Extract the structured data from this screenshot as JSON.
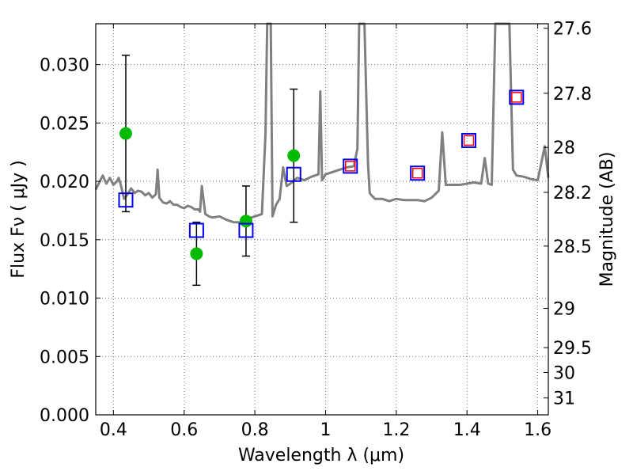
{
  "chart_data": {
    "type": "scatter",
    "title": "",
    "xlabel": "Wavelength  λ (μm)",
    "ylabel": "Flux  Fν  ( μJy )",
    "ylabel_right": "Magnitude (AB)",
    "xlim": [
      0.35,
      1.63
    ],
    "ylim": [
      0.0,
      0.0335
    ],
    "grid": true,
    "x_ticks": [
      0.4,
      0.6,
      0.8,
      1.0,
      1.2,
      1.4,
      1.6
    ],
    "x_tick_labels": [
      "0.4",
      "0.6",
      "0.8",
      "1",
      "1.2",
      "1.4",
      "1.6"
    ],
    "y_ticks": [
      0.0,
      0.005,
      0.01,
      0.015,
      0.02,
      0.025,
      0.03
    ],
    "y_tick_labels": [
      "0.000",
      "0.005",
      "0.010",
      "0.015",
      "0.020",
      "0.025",
      "0.030"
    ],
    "right_ticks": [
      {
        "label": "27.6",
        "mag": 27.6
      },
      {
        "label": "27.8",
        "mag": 27.8
      },
      {
        "label": "28",
        "mag": 28.0
      },
      {
        "label": "28.2",
        "mag": 28.2
      },
      {
        "label": "28.5",
        "mag": 28.5
      },
      {
        "label": "29",
        "mag": 29.0
      },
      {
        "label": "29.5",
        "mag": 29.5
      },
      {
        "label": "30",
        "mag": 30.0
      },
      {
        "label": "31",
        "mag": 31.0
      }
    ],
    "series": [
      {
        "kind": "model_spectrum",
        "color": "#808080",
        "x": [
          0.35,
          0.37,
          0.38,
          0.39,
          0.4,
          0.41,
          0.415,
          0.42,
          0.43,
          0.44,
          0.45,
          0.46,
          0.47,
          0.48,
          0.49,
          0.5,
          0.51,
          0.52,
          0.525,
          0.53,
          0.54,
          0.55,
          0.56,
          0.57,
          0.58,
          0.59,
          0.6,
          0.61,
          0.62,
          0.63,
          0.64,
          0.645,
          0.65,
          0.66,
          0.67,
          0.68,
          0.7,
          0.72,
          0.74,
          0.76,
          0.78,
          0.8,
          0.82,
          0.83,
          0.835,
          0.84,
          0.845,
          0.85,
          0.86,
          0.87,
          0.88,
          0.89,
          0.9,
          0.92,
          0.94,
          0.96,
          0.98,
          0.985,
          0.99,
          1.0,
          1.02,
          1.04,
          1.06,
          1.08,
          1.09,
          1.095,
          1.1,
          1.11,
          1.12,
          1.125,
          1.13,
          1.14,
          1.16,
          1.18,
          1.2,
          1.22,
          1.24,
          1.26,
          1.28,
          1.3,
          1.32,
          1.33,
          1.34,
          1.36,
          1.38,
          1.4,
          1.42,
          1.44,
          1.45,
          1.46,
          1.47,
          1.48,
          1.5,
          1.51,
          1.52,
          1.53,
          1.54,
          1.56,
          1.58,
          1.6,
          1.62,
          1.63
        ],
        "y": [
          0.0193,
          0.0205,
          0.0198,
          0.0203,
          0.0197,
          0.02,
          0.0203,
          0.0198,
          0.0185,
          0.0189,
          0.0194,
          0.019,
          0.0192,
          0.0191,
          0.0188,
          0.019,
          0.0186,
          0.0189,
          0.021,
          0.0186,
          0.0182,
          0.0181,
          0.0183,
          0.018,
          0.018,
          0.0178,
          0.0177,
          0.0179,
          0.0178,
          0.0176,
          0.0176,
          0.0174,
          0.0196,
          0.0172,
          0.017,
          0.0169,
          0.017,
          0.0167,
          0.0165,
          0.0165,
          0.0168,
          0.017,
          0.0172,
          0.024,
          0.0335,
          0.0335,
          0.0335,
          0.017,
          0.018,
          0.0185,
          0.0212,
          0.0196,
          0.0198,
          0.0203,
          0.0201,
          0.0204,
          0.0206,
          0.0277,
          0.0201,
          0.0206,
          0.0208,
          0.021,
          0.0212,
          0.0213,
          0.0228,
          0.0335,
          0.0335,
          0.0335,
          0.0215,
          0.019,
          0.0188,
          0.0185,
          0.0185,
          0.0183,
          0.0185,
          0.0184,
          0.0184,
          0.0184,
          0.0183,
          0.0186,
          0.0192,
          0.0242,
          0.0197,
          0.0197,
          0.0197,
          0.0198,
          0.0199,
          0.0198,
          0.022,
          0.0198,
          0.0197,
          0.0335,
          0.0335,
          0.0335,
          0.0335,
          0.021,
          0.0205,
          0.0204,
          0.0202,
          0.0201,
          0.023,
          0.0203
        ]
      },
      {
        "kind": "observed",
        "color": "#00bb00",
        "points": [
          {
            "x": 0.435,
            "y": 0.0241,
            "err": 0.0067
          },
          {
            "x": 0.635,
            "y": 0.0138,
            "err": 0.0027
          },
          {
            "x": 0.775,
            "y": 0.0166,
            "err": 0.003
          },
          {
            "x": 0.91,
            "y": 0.0222,
            "err": 0.0057
          }
        ]
      },
      {
        "kind": "model_band_fluxes",
        "color": "#0000ee",
        "x": [
          0.435,
          0.635,
          0.775,
          0.91,
          1.07,
          1.26,
          1.405,
          1.54
        ],
        "y": [
          0.0184,
          0.0158,
          0.0158,
          0.0206,
          0.0213,
          0.0207,
          0.0235,
          0.0272
        ]
      },
      {
        "kind": "inner_markers",
        "color": "#ff0000",
        "x": [
          1.07,
          1.26,
          1.405,
          1.54
        ],
        "y": [
          0.0213,
          0.0207,
          0.0235,
          0.0272
        ]
      }
    ]
  }
}
